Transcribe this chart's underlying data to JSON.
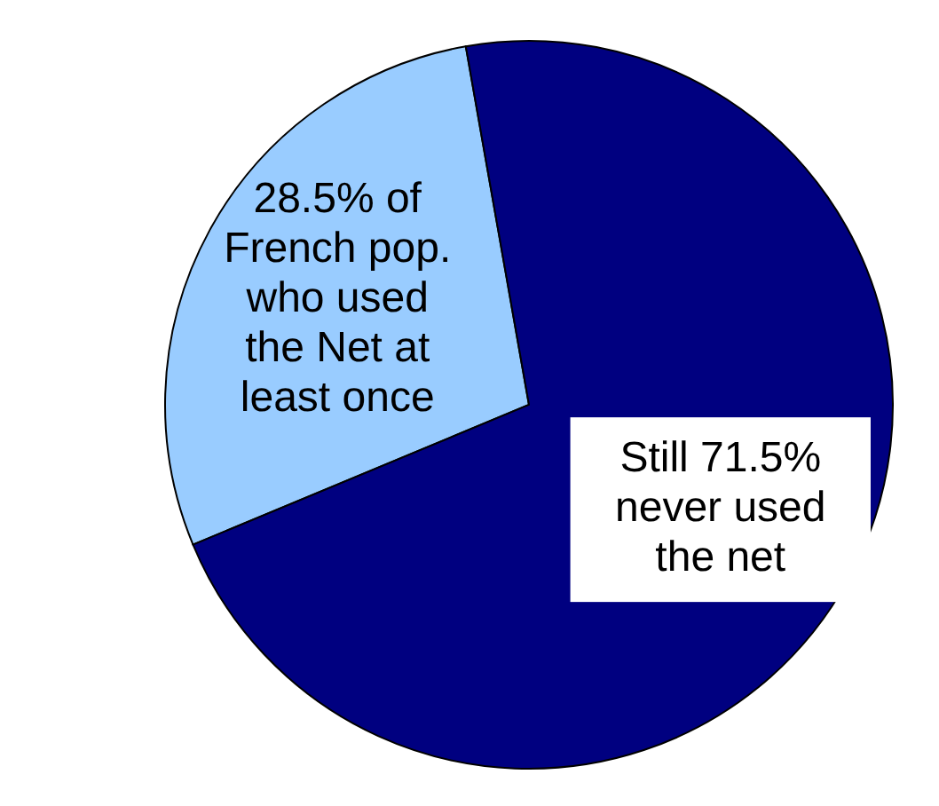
{
  "chart_data": {
    "type": "pie",
    "categories": [
      "28.5% of French pop. who used the Net at least once",
      "Still 71.5% never used the net"
    ],
    "values": [
      28.5,
      71.5
    ],
    "colors": [
      "#99ccff",
      "#000080"
    ],
    "legend": false
  }
}
